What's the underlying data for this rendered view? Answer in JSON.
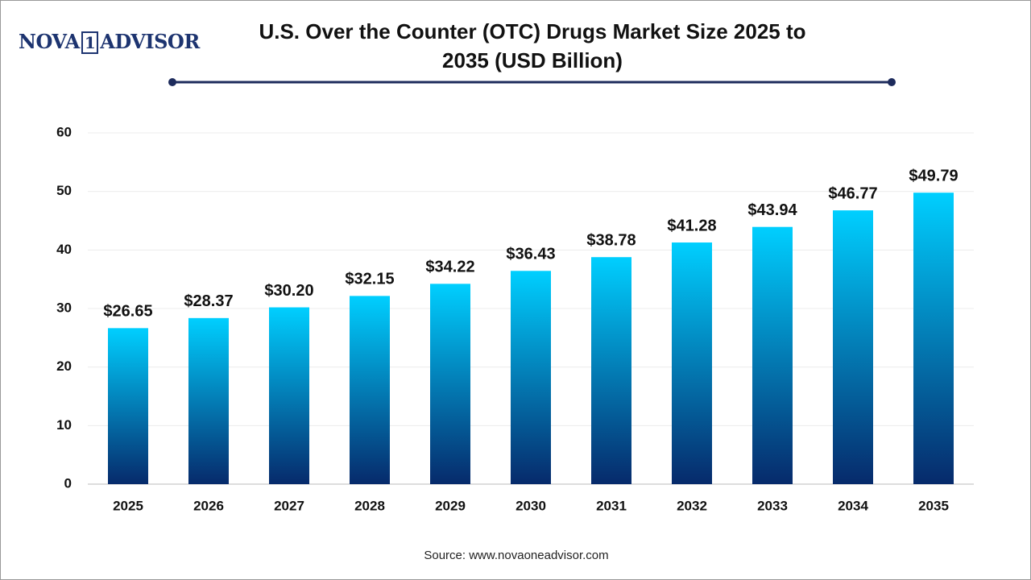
{
  "logo": {
    "left": "NOVA",
    "mid": "1",
    "right": "ADVISOR"
  },
  "chart_data": {
    "type": "bar",
    "title": "U.S. Over the Counter (OTC) Drugs Market Size 2025 to 2035 (USD Billion)",
    "categories": [
      "2025",
      "2026",
      "2027",
      "2028",
      "2029",
      "2030",
      "2031",
      "2032",
      "2033",
      "2034",
      "2035"
    ],
    "values": [
      26.65,
      28.37,
      30.2,
      32.15,
      34.22,
      36.43,
      38.78,
      41.28,
      43.94,
      46.77,
      49.79
    ],
    "value_labels": [
      "$26.65",
      "$28.37",
      "$30.20",
      "$32.15",
      "$34.22",
      "$36.43",
      "$38.78",
      "$41.28",
      "$43.94",
      "$46.77",
      "$49.79"
    ],
    "color": [
      "#00cfff",
      "#062a6b"
    ],
    "ylim": [
      0,
      60
    ],
    "yticks": [
      0,
      10,
      20,
      30,
      40,
      50,
      60
    ],
    "grid": true,
    "source": "Source: www.novaoneadvisor.com"
  }
}
